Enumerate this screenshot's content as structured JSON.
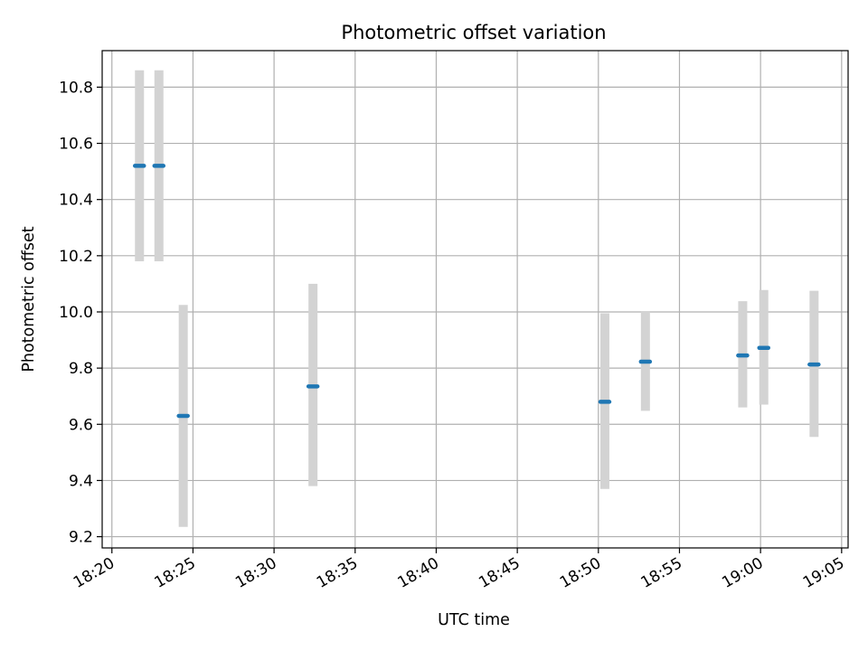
{
  "chart_data": {
    "type": "scatter",
    "title": "Photometric offset variation",
    "xlabel": "UTC time",
    "ylabel": "Photometric offset",
    "x_tick_labels": [
      "18:20",
      "18:25",
      "18:30",
      "18:35",
      "18:40",
      "18:45",
      "18:50",
      "18:55",
      "19:00",
      "19:05"
    ],
    "y_tick_labels": [
      "9.2",
      "9.4",
      "9.6",
      "9.8",
      "10.0",
      "10.2",
      "10.4",
      "10.6",
      "10.8"
    ],
    "xlim": [
      "18:19:24",
      "19:05:24"
    ],
    "ylim": [
      9.16,
      10.93
    ],
    "grid": true,
    "point_color": "#1f77b4",
    "errorbar_color": "#d3d3d3",
    "series": [
      {
        "x": [
          "18:21:42",
          "18:22:54",
          "18:24:24",
          "18:32:24",
          "18:50:24",
          "18:52:54",
          "18:58:54",
          "19:00:12",
          "19:03:18"
        ],
        "y": [
          10.52,
          10.52,
          9.63,
          9.735,
          9.68,
          9.823,
          9.845,
          9.872,
          9.813
        ],
        "yerr_low": [
          10.18,
          10.18,
          9.235,
          9.38,
          9.37,
          9.648,
          9.66,
          9.67,
          9.555
        ],
        "yerr_high": [
          10.86,
          10.86,
          10.025,
          10.1,
          9.995,
          10.003,
          10.038,
          10.078,
          10.075
        ]
      }
    ]
  }
}
